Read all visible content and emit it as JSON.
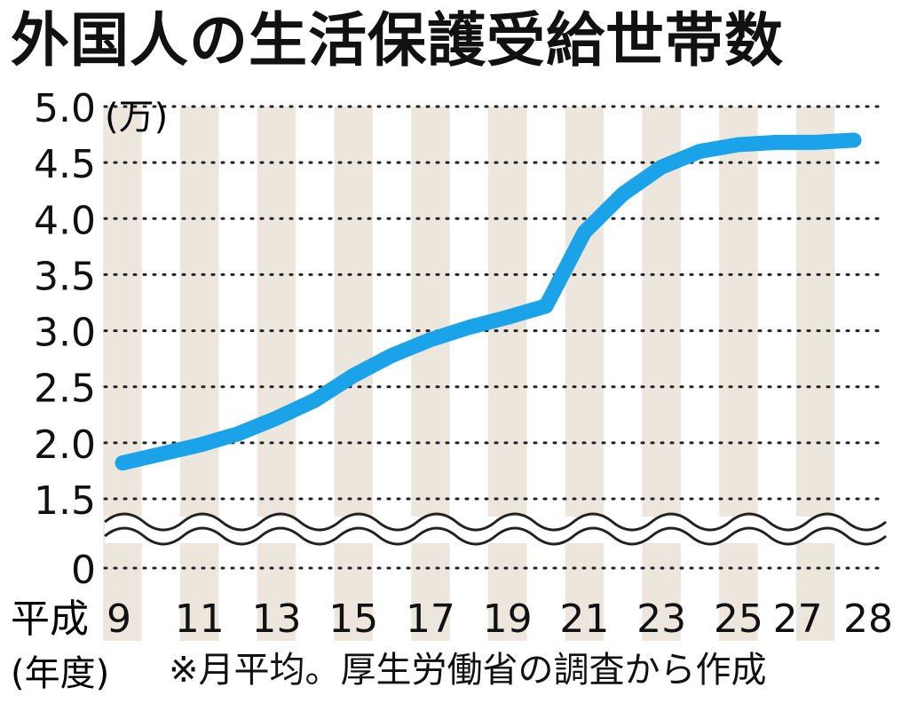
{
  "title": "外国人の生活保護受給世帯数",
  "note": "※月平均。厚生労働省の調査から作成",
  "chart_data": {
    "type": "line",
    "unit": "(万)",
    "x_prefix": "平成",
    "x_label": "(年度)",
    "x": [
      9,
      10,
      11,
      12,
      13,
      14,
      15,
      16,
      17,
      18,
      19,
      20,
      21,
      22,
      23,
      24,
      25,
      26,
      27,
      28
    ],
    "x_tick_labels": [
      "9",
      "11",
      "13",
      "15",
      "17",
      "19",
      "21",
      "23",
      "25",
      "27",
      "28"
    ],
    "y_ticks": [
      "5.0",
      "4.5",
      "4.0",
      "3.5",
      "3.0",
      "2.5",
      "2.0",
      "1.5",
      "0"
    ],
    "y_axis_break": true,
    "ylim": [
      1.5,
      5.0
    ],
    "series": [
      {
        "values": [
          1.82,
          1.9,
          1.98,
          2.08,
          2.22,
          2.38,
          2.6,
          2.78,
          2.92,
          3.03,
          3.12,
          3.22,
          3.88,
          4.22,
          4.46,
          4.6,
          4.66,
          4.68,
          4.68,
          4.7
        ],
        "color": "#1aa3e8"
      }
    ],
    "grid": "dotted-horizontal",
    "band_color": "#ece6dc"
  }
}
